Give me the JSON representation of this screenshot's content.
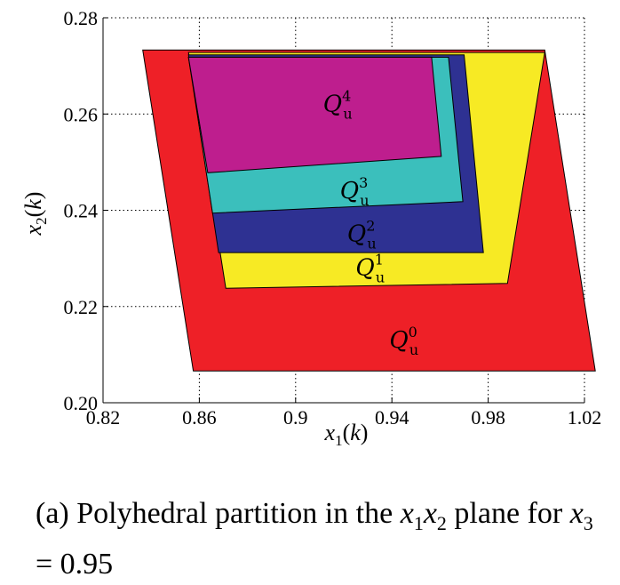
{
  "chart_data": {
    "type": "polygon",
    "xlabel": "x1(k)",
    "ylabel": "x2(k)",
    "xlim": [
      0.82,
      1.02
    ],
    "ylim": [
      0.2,
      0.28
    ],
    "xticks": [
      "0.82",
      "0.86",
      "0.9",
      "0.94",
      "0.98",
      "1.02"
    ],
    "yticks": [
      "0.20",
      "0.22",
      "0.24",
      "0.26",
      "0.28"
    ],
    "grid": true,
    "regions": [
      {
        "name": "Q_u^0",
        "label": "Q",
        "sub": "u",
        "sup": "0",
        "color": "#ee2027",
        "label_at": [
          0.945,
          0.2115
        ],
        "polygon": [
          [
            0.8365,
            0.2733
          ],
          [
            1.0035,
            0.2733
          ],
          [
            1.0245,
            0.2066
          ],
          [
            0.8575,
            0.2066
          ]
        ]
      },
      {
        "name": "Q_u^1",
        "label": "Q",
        "sub": "u",
        "sup": "1",
        "color": "#f7ea24",
        "label_at": [
          0.931,
          0.2265
        ],
        "polygon": [
          [
            0.8555,
            0.2728
          ],
          [
            1.0035,
            0.2728
          ],
          [
            0.988,
            0.2248
          ],
          [
            0.871,
            0.2238
          ],
          [
            0.8555,
            0.2728
          ]
        ]
      },
      {
        "name": "Q_u^2",
        "label": "Q",
        "sub": "u",
        "sup": "2",
        "color": "#2e3192",
        "label_at": [
          0.9275,
          0.2335
        ],
        "polygon": [
          [
            0.8555,
            0.2723
          ],
          [
            0.97,
            0.2723
          ],
          [
            0.978,
            0.2312
          ],
          [
            0.868,
            0.2312
          ]
        ]
      },
      {
        "name": "Q_u^3",
        "label": "Q",
        "sub": "u",
        "sup": "3",
        "color": "#3bbfbc",
        "label_at": [
          0.9245,
          0.2425
        ],
        "polygon": [
          [
            0.8555,
            0.2718
          ],
          [
            0.9635,
            0.2718
          ],
          [
            0.9695,
            0.2418
          ],
          [
            0.8655,
            0.2394
          ]
        ]
      },
      {
        "name": "Q_u^4",
        "label": "Q",
        "sub": "u",
        "sup": "4",
        "color": "#be1e8e",
        "label_at": [
          0.9175,
          0.2605
        ],
        "polygon": [
          [
            0.8555,
            0.2718
          ],
          [
            0.9565,
            0.2718
          ],
          [
            0.9605,
            0.2512
          ],
          [
            0.8635,
            0.2478
          ]
        ]
      }
    ]
  },
  "caption": {
    "prefix": "(a) Polyhedral partition in the ",
    "math1": "x",
    "math1_sub": "1",
    "math2": "x",
    "math2_sub": "2",
    "mid": " plane for ",
    "math3": "x",
    "math3_sub": "3",
    "suffix": " = 0.95"
  }
}
